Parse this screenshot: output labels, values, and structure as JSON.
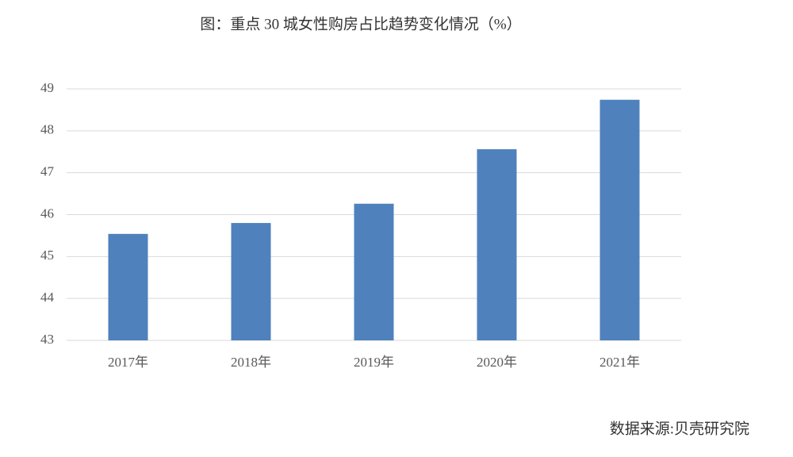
{
  "chart_data": {
    "type": "bar",
    "title": "图：重点 30 城女性购房占比趋势变化情况（%）",
    "categories": [
      "2017年",
      "2018年",
      "2019年",
      "2020年",
      "2021年"
    ],
    "values": [
      45.54,
      45.8,
      46.26,
      47.56,
      48.74
    ],
    "color": "#4f81bd",
    "ylim": [
      43,
      49
    ],
    "yticks": [
      43,
      44,
      45,
      46,
      47,
      48,
      49
    ],
    "grid": true,
    "source": "数据来源:贝壳研究院"
  }
}
